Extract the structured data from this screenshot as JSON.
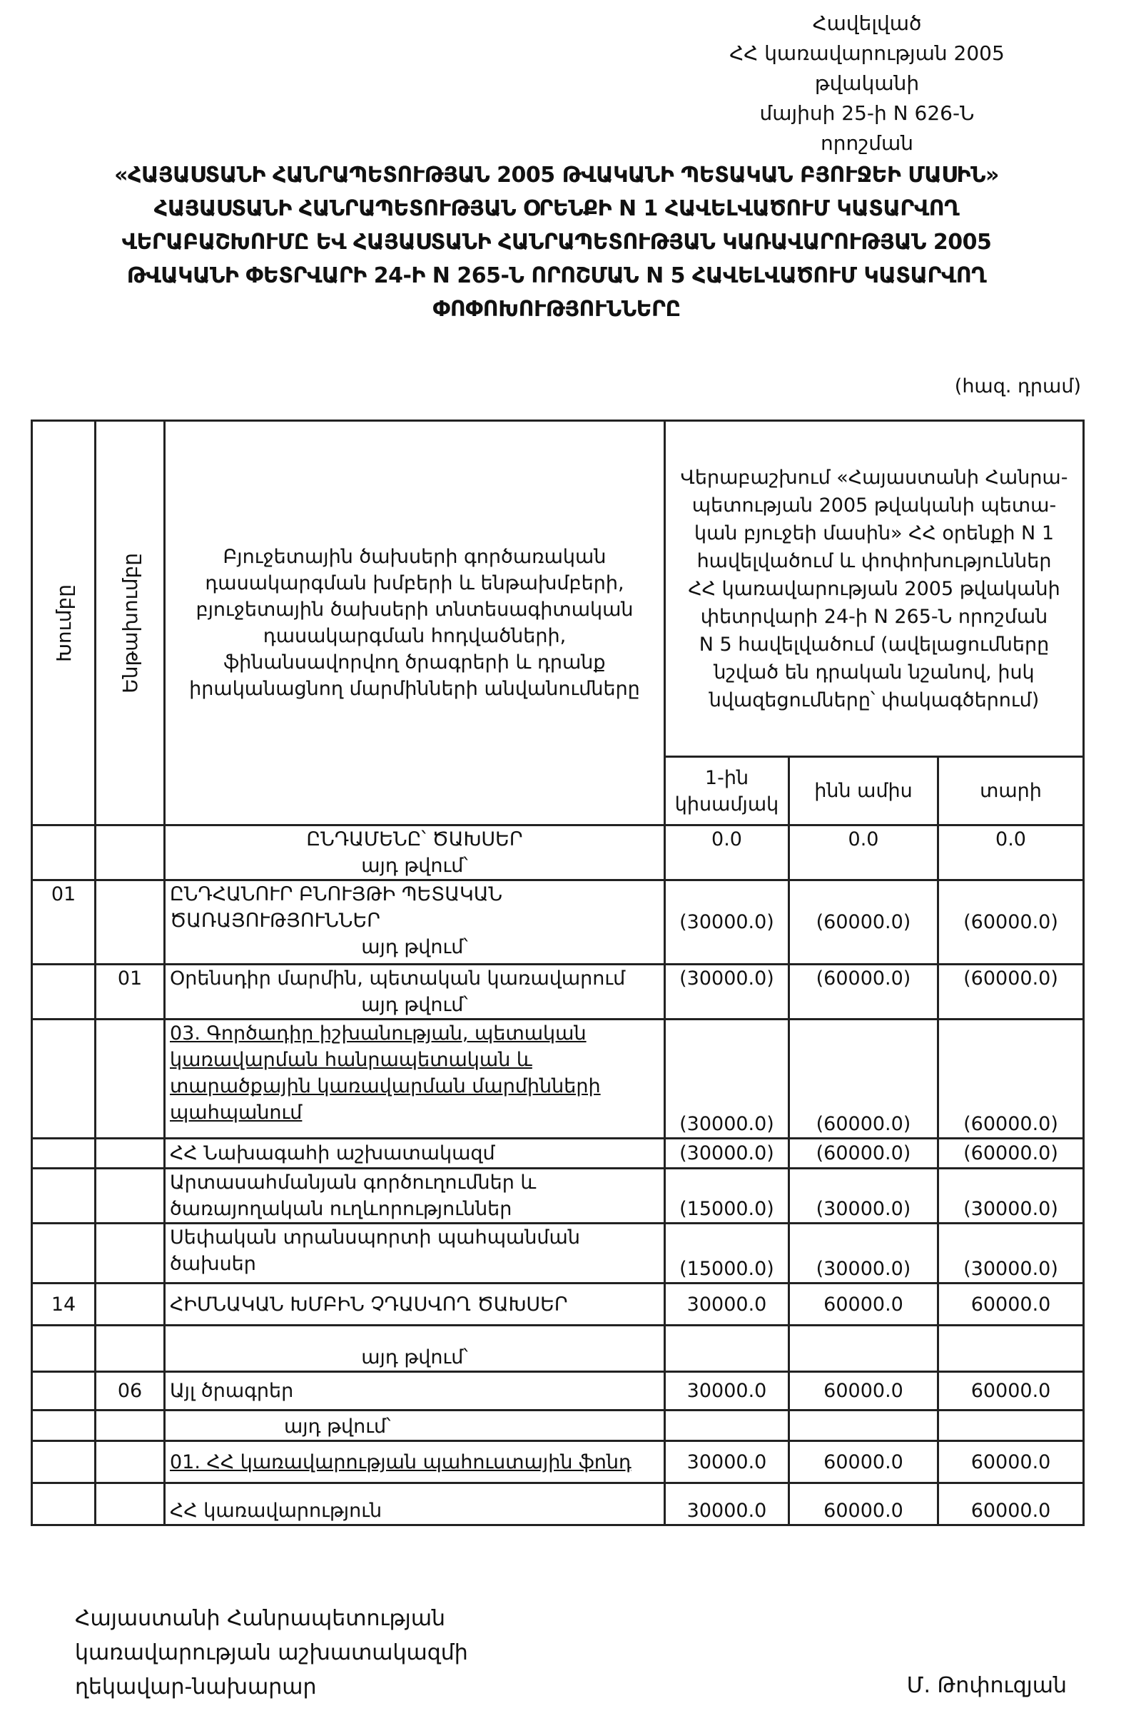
{
  "approval": [
    "Հավելված",
    "ՀՀ կառավարության 2005 թվականի",
    "մայիսի 25-ի N 626-Ն որոշման"
  ],
  "title": [
    "«ՀԱՅԱՍՏԱՆԻ ՀԱՆՐԱՊԵՏՈՒԹՅԱՆ 2005 ԹՎԱԿԱՆԻ ՊԵՏԱԿԱՆ ԲՅՈՒՋԵԻ ՄԱՍԻՆ»",
    "ՀԱՅԱՍՏԱՆԻ ՀԱՆՐԱՊԵՏՈՒԹՅԱՆ  ՕՐԵՆՔԻ N 1 ՀԱՎԵԼՎԱԾՈՒՄ ԿԱՏԱՐՎՈՂ",
    "ՎԵՐԱԲԱՇԽՈՒՄԸ ԵՎ ՀԱՅԱՍՏԱՆԻ ՀԱՆՐԱՊԵՏՈՒԹՅԱՆ ԿԱՌԱՎԱՐՈՒԹՅԱՆ 2005",
    "ԹՎԱԿԱՆԻ ՓԵՏՐՎԱՐԻ 24-Ի N 265-Ն ՈՐՈՇՄԱՆ N 5 ՀԱՎԵԼՎԱԾՈՒՄ ԿԱՏԱՐՎՈՂ",
    "ՓՈՓՈԽՈՒԹՅՈՒՆՆԵՐԸ"
  ],
  "unit": "(հազ. դրամ)",
  "table": {
    "headers": {
      "group": "Խումբը",
      "subgroup": "Ենթախումբը",
      "name": [
        "Բյուջետային ծախսերի գործառական",
        "դասակարգման խմբերի և ենթախմբերի,",
        "բյուջետային ծախսերի տնտեսագիտական",
        "դասակարգման հոդվածների,",
        "ֆինանսավորվող ծրագրերի և դրանք",
        "իրականացնող մարմինների անվանումները"
      ],
      "change": [
        "Վերաբաշխում «Հայաստանի Հանրա-",
        "պետության 2005 թվականի պետա-",
        "կան բյուջեի մասին» ՀՀ օրենքի N 1",
        "հավելվածում և փոփոխություններ",
        "ՀՀ կառավարության 2005 թվականի",
        "փետրվարի 24-ի N 265-Ն որոշման",
        "N 5 հավելվածում (ավելացումները",
        "նշված են դրական նշանով, իսկ",
        "նվազեցումները՝ փակագծերում)"
      ],
      "periods": [
        [
          "1-ին",
          "կիսամյակ"
        ],
        [
          "ինն ամիս"
        ],
        [
          "տարի"
        ]
      ]
    },
    "rows": [
      {
        "group": "",
        "subgroup": "",
        "name": [
          "ԸՆԴԱՄԵՆԸ՝ ԾԱԽՍԵՐ"
        ],
        "note": "այդ թվում՝",
        "values": [
          "0.0",
          "0.0",
          "0.0"
        ]
      },
      {
        "group": "01",
        "subgroup": "",
        "name": [
          "ԸՆԴՀԱՆՈՒՐ ԲՆՈՒՅԹԻ ՊԵՏԱԿԱՆ",
          "ԾԱՌԱՅՈՒԹՅՈՒՆՆԵՐ"
        ],
        "note": "այդ թվում՝",
        "values": [
          "(30000.0)",
          "(60000.0)",
          "(60000.0)"
        ]
      },
      {
        "group": "",
        "subgroup": "01",
        "name": [
          "Օրենսդիր մարմին, պետական կառավարում"
        ],
        "note": "այդ թվում՝",
        "values": [
          "(30000.0)",
          "(60000.0)",
          "(60000.0)"
        ]
      },
      {
        "group": "",
        "subgroup": "",
        "name": [
          "03. Գործադիր իշխանության, պետական",
          "կառավարման հանրապետական և",
          "տարածքային կառավարման մարմինների",
          "պահպանում"
        ],
        "note": "",
        "values": [
          "(30000.0)",
          "(60000.0)",
          "(60000.0)"
        ]
      },
      {
        "group": "",
        "subgroup": "",
        "name": [
          "ՀՀ Նախագահի աշխատակազմ"
        ],
        "note": "",
        "values": [
          "(30000.0)",
          "(60000.0)",
          "(60000.0)"
        ]
      },
      {
        "group": "",
        "subgroup": "",
        "name": [
          "Արտասահմանյան գործուղումներ և",
          "ծառայողական ուղևորություններ"
        ],
        "note": "",
        "values": [
          "(15000.0)",
          "(30000.0)",
          "(30000.0)"
        ]
      },
      {
        "group": "",
        "subgroup": "",
        "name": [
          "Սեփական տրանսպորտի պահպանման",
          "ծախսեր"
        ],
        "note": "",
        "values": [
          "(15000.0)",
          "(30000.0)",
          "(30000.0)"
        ]
      },
      {
        "group": "14",
        "subgroup": "",
        "name": [
          "ՀԻՄՆԱԿԱՆ ԽՄԲԻՆ ՉԴԱՍՎՈՂ ԾԱԽՍԵՐ"
        ],
        "note": "",
        "values": [
          "30000.0",
          "60000.0",
          "60000.0"
        ]
      },
      {
        "group": "",
        "subgroup": "",
        "name": [],
        "note": "այդ թվում՝",
        "values": [
          "",
          "",
          ""
        ]
      },
      {
        "group": "",
        "subgroup": "06",
        "name": [
          "Այլ ծրագրեր"
        ],
        "note": "",
        "values": [
          "30000.0",
          "60000.0",
          "60000.0"
        ]
      },
      {
        "group": "",
        "subgroup": "",
        "name": [],
        "note": "այդ թվում՝",
        "values": [
          "",
          "",
          ""
        ]
      },
      {
        "group": "",
        "subgroup": "",
        "name": [
          "01. ՀՀ կառավարության պահուստային ֆոնդ"
        ],
        "note": "",
        "values": [
          "30000.0",
          "60000.0",
          "60000.0"
        ]
      },
      {
        "group": "",
        "subgroup": "",
        "name": [
          "ՀՀ կառավարություն"
        ],
        "note": "",
        "values": [
          "30000.0",
          "60000.0",
          "60000.0"
        ]
      }
    ]
  },
  "footer": {
    "position": [
      "Հայաստանի Հանրապետության",
      "կառավարության աշխատակազմի",
      "ղեկավար-նախարար"
    ],
    "signatory": "Մ. Թոփուզյան"
  }
}
